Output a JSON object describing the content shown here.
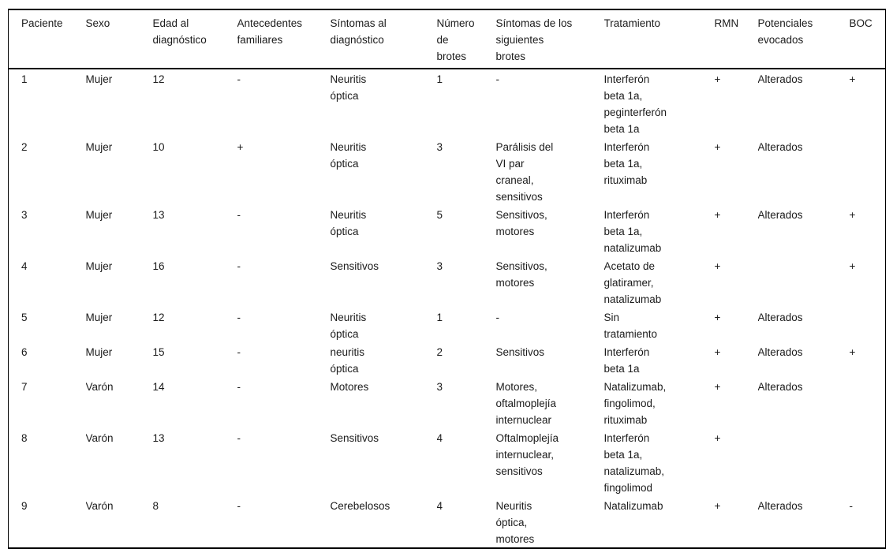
{
  "table": {
    "columns": [
      "Paciente",
      "Sexo",
      "Edad al\ndiagnóstico",
      "Antecedentes\nfamiliares",
      "Síntomas al\ndiagnóstico",
      "Número\nde\nbrotes",
      "Síntomas de los\nsiguientes\nbrotes",
      "Tratamiento",
      "RMN",
      "Potenciales\nevocados",
      "BOC"
    ],
    "rows": [
      [
        "1",
        "Mujer",
        "12",
        "-",
        "Neuritis\nóptica",
        "1",
        "-",
        "Interferón\nbeta 1a,\npeginterferón\nbeta 1a",
        "+",
        "Alterados",
        "+"
      ],
      [
        "2",
        "Mujer",
        "10",
        "+",
        "Neuritis\nóptica",
        "3",
        "Parálisis del\nVI par\ncraneal,\nsensitivos",
        "Interferón\nbeta 1a,\nrituximab",
        "+",
        "Alterados",
        ""
      ],
      [
        "3",
        "Mujer",
        "13",
        "-",
        "Neuritis\nóptica",
        "5",
        "Sensitivos,\nmotores",
        "Interferón\nbeta 1a,\nnatalizumab",
        "+",
        "Alterados",
        "+"
      ],
      [
        "4",
        "Mujer",
        "16",
        "-",
        "Sensitivos",
        "3",
        "Sensitivos,\nmotores",
        "Acetato de\nglatiramer,\nnatalizumab",
        "+",
        "",
        "+"
      ],
      [
        "5",
        "Mujer",
        "12",
        "-",
        "Neuritis\nóptica",
        "1",
        "-",
        "Sin\ntratamiento",
        "+",
        "Alterados",
        ""
      ],
      [
        "6",
        "Mujer",
        "15",
        "-",
        "neuritis\nóptica",
        "2",
        "Sensitivos",
        "Interferón\nbeta 1a",
        "+",
        "Alterados",
        "+"
      ],
      [
        "7",
        "Varón",
        "14",
        "-",
        "Motores",
        "3",
        "Motores,\noftalmoplejía\ninternuclear",
        "Natalizumab,\nfingolimod,\nrituximab",
        "+",
        "Alterados",
        ""
      ],
      [
        "8",
        "Varón",
        "13",
        "-",
        "Sensitivos",
        "4",
        "Oftalmoplejía\ninternuclear,\nsensitivos",
        "Interferón\nbeta 1a,\nnatalizumab,\nfingolimod",
        "+",
        "",
        ""
      ],
      [
        "9",
        "Varón",
        "8",
        "-",
        "Cerebelosos",
        "4",
        "Neuritis\nóptica,\nmotores",
        "Natalizumab",
        "+",
        "Alterados",
        "-"
      ]
    ]
  }
}
